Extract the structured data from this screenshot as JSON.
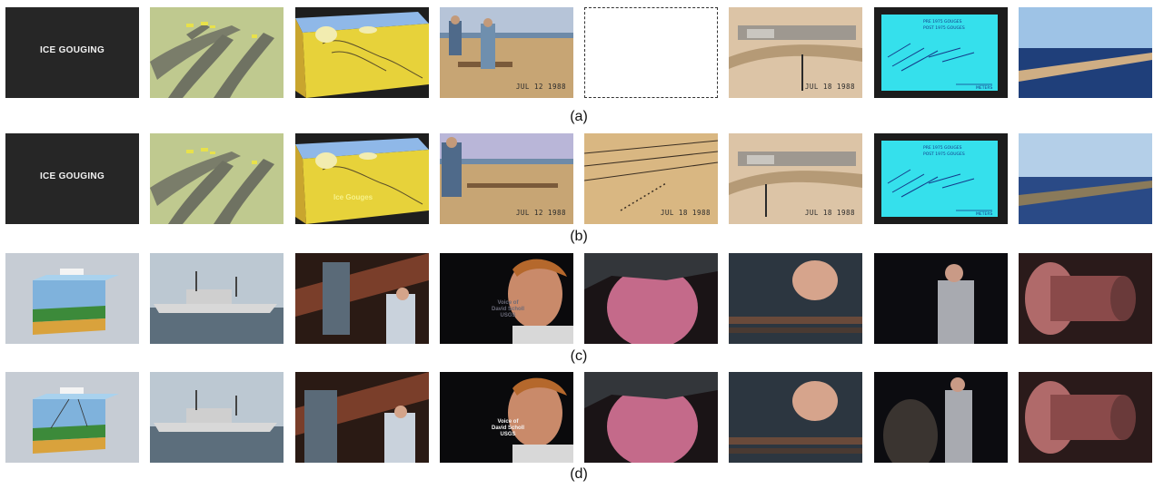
{
  "rows": [
    {
      "caption": "(a)"
    },
    {
      "caption": "(b)"
    },
    {
      "caption": "(c)"
    },
    {
      "caption": "(d)"
    }
  ],
  "overlays": {
    "title_card": "ICE GOUGING",
    "date_jul12": "JUL 12 1988",
    "date_jul18": "JUL 18 1988",
    "ice_gouges": "Ice Gouges",
    "legend_pre": "PRE 1975 GOUGES",
    "legend_post": "POST 1975 GOUGES",
    "legend_meters": "METERS",
    "voice_line1": "Voice of",
    "voice_line2": "David Scholl",
    "voice_line3": "USGS"
  },
  "colors": {
    "page_background": "#ffffff",
    "title_card_background": "#262626",
    "sonar_map_cyan": "#35e0ec",
    "diagram_yellow": "#e8d23a",
    "sky_blue": "#9ec3e6"
  }
}
